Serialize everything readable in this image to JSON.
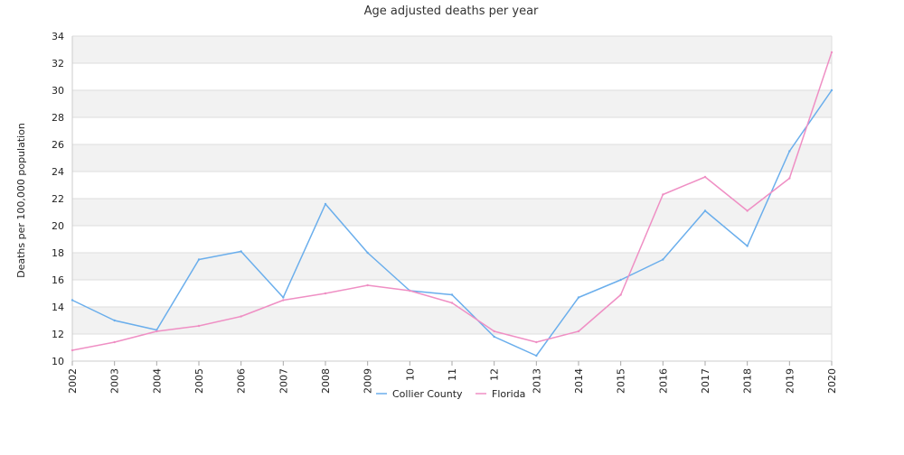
{
  "chart_data": {
    "type": "line",
    "title": "Age adjusted deaths per year",
    "xlabel": "",
    "ylabel": "Deaths per 100,000 population",
    "x": [
      "2002",
      "2003",
      "2004",
      "2005",
      "2006",
      "2007",
      "2008",
      "2009",
      "10",
      "11",
      "12",
      "2013",
      "2014",
      "2015",
      "2016",
      "2017",
      "2018",
      "2019",
      "2020"
    ],
    "ylim": [
      10,
      34
    ],
    "yticks": [
      10,
      12,
      14,
      16,
      18,
      20,
      22,
      24,
      26,
      28,
      30,
      32,
      34
    ],
    "grid": true,
    "legend_position": "bottom-center",
    "series": [
      {
        "name": "Collier County",
        "color": "#6aaeec",
        "values": [
          14.5,
          13.0,
          12.3,
          17.5,
          18.1,
          14.7,
          21.6,
          18.0,
          15.2,
          14.9,
          11.8,
          10.4,
          14.7,
          16.0,
          17.5,
          21.1,
          18.5,
          25.5,
          30.0
        ]
      },
      {
        "name": "Florida",
        "color": "#ef8fc4",
        "values": [
          10.8,
          11.4,
          12.2,
          12.6,
          13.3,
          14.5,
          15.0,
          15.6,
          15.2,
          14.3,
          12.2,
          11.4,
          12.2,
          14.9,
          22.3,
          23.6,
          21.1,
          23.5,
          32.8
        ]
      }
    ]
  }
}
